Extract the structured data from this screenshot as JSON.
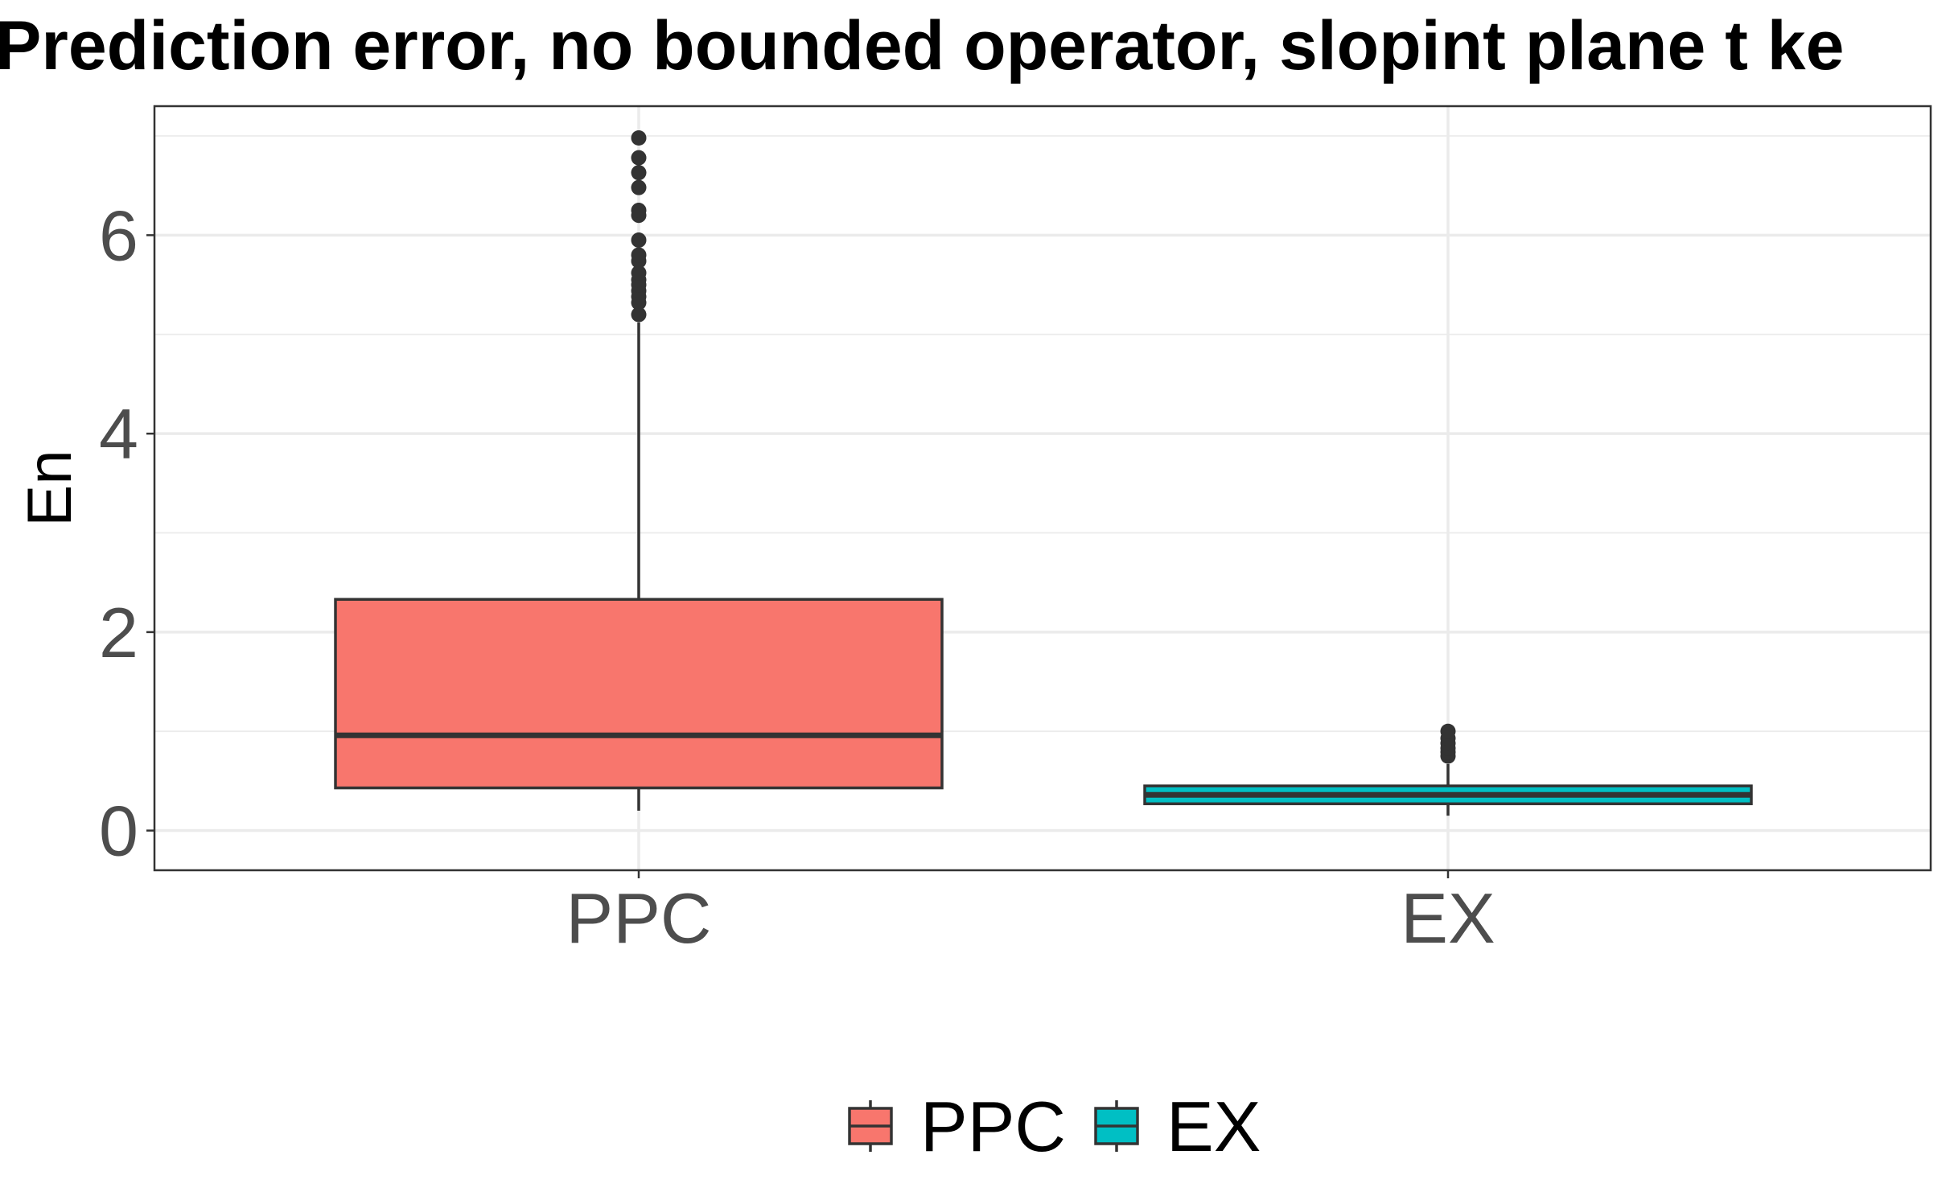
{
  "chart_data": {
    "type": "boxplot",
    "title": "Prediction error, no bounded operator, slopint plane t ke",
    "xlabel": "",
    "ylabel": "En",
    "ylim": [
      -0.4,
      7.3
    ],
    "yticks": [
      0,
      2,
      4,
      6
    ],
    "yticks_minor": [
      1,
      3,
      5,
      7
    ],
    "grid": true,
    "legend_position": "bottom",
    "categories": [
      "PPC",
      "EX"
    ],
    "series": [
      {
        "name": "PPC",
        "color": "#F8766D",
        "whisker_low": 0.2,
        "q1": 0.43,
        "median": 0.96,
        "q3": 2.33,
        "whisker_high": 5.12,
        "outliers": [
          5.2,
          5.32,
          5.38,
          5.44,
          5.5,
          5.55,
          5.62,
          5.74,
          5.8,
          5.95,
          6.2,
          6.25,
          6.48,
          6.63,
          6.78,
          6.98
        ]
      },
      {
        "name": "EX",
        "color": "#00BFC4",
        "whisker_low": 0.15,
        "q1": 0.27,
        "median": 0.36,
        "q3": 0.45,
        "whisker_high": 0.67,
        "outliers": [
          0.75,
          0.79,
          0.83,
          0.88,
          0.93,
          1.0
        ]
      }
    ]
  }
}
